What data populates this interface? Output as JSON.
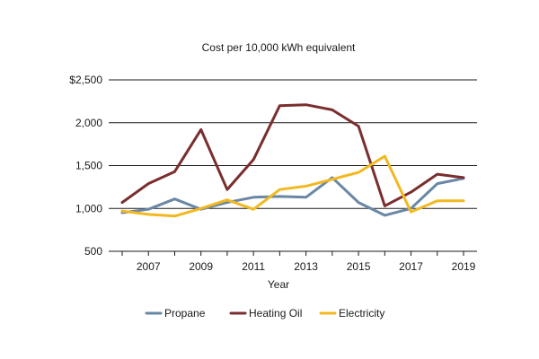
{
  "chart_data": {
    "type": "line",
    "title": "Cost per 10,000 kWh equivalent",
    "xlabel": "Year",
    "ylabel": "",
    "x": [
      2006,
      2007,
      2008,
      2009,
      2010,
      2011,
      2012,
      2013,
      2014,
      2015,
      2016,
      2017,
      2018,
      2019
    ],
    "xlim": [
      2006,
      2019
    ],
    "ylim": [
      500,
      2500
    ],
    "grid": "horizontal",
    "legend_position": "bottom",
    "x_ticks": [
      {
        "value": 2007,
        "label": "2007"
      },
      {
        "value": 2009,
        "label": "2009"
      },
      {
        "value": 2011,
        "label": "2011"
      },
      {
        "value": 2013,
        "label": "2013"
      },
      {
        "value": 2015,
        "label": "2015"
      },
      {
        "value": 2017,
        "label": "2017"
      },
      {
        "value": 2019,
        "label": "2019"
      }
    ],
    "y_ticks": [
      {
        "value": 2500,
        "label": "$2,500"
      },
      {
        "value": 2000,
        "label": "2,000"
      },
      {
        "value": 1500,
        "label": "1,500"
      },
      {
        "value": 1000,
        "label": "1,000"
      },
      {
        "value": 500,
        "label": "500"
      }
    ],
    "series": [
      {
        "name": "Propane",
        "color": "#6a87a5",
        "values": [
          950,
          990,
          1110,
          990,
          1070,
          1130,
          1140,
          1130,
          1360,
          1070,
          920,
          1000,
          1290,
          1350
        ]
      },
      {
        "name": "Heating Oil",
        "color": "#7a2e2e",
        "values": [
          1070,
          1290,
          1430,
          1920,
          1220,
          1570,
          2200,
          2210,
          2150,
          1960,
          1030,
          1190,
          1400,
          1360
        ]
      },
      {
        "name": "Electricity",
        "color": "#f2b81f",
        "values": [
          970,
          930,
          910,
          1000,
          1100,
          990,
          1220,
          1260,
          1340,
          1420,
          1610,
          960,
          1090,
          1090
        ]
      }
    ]
  }
}
